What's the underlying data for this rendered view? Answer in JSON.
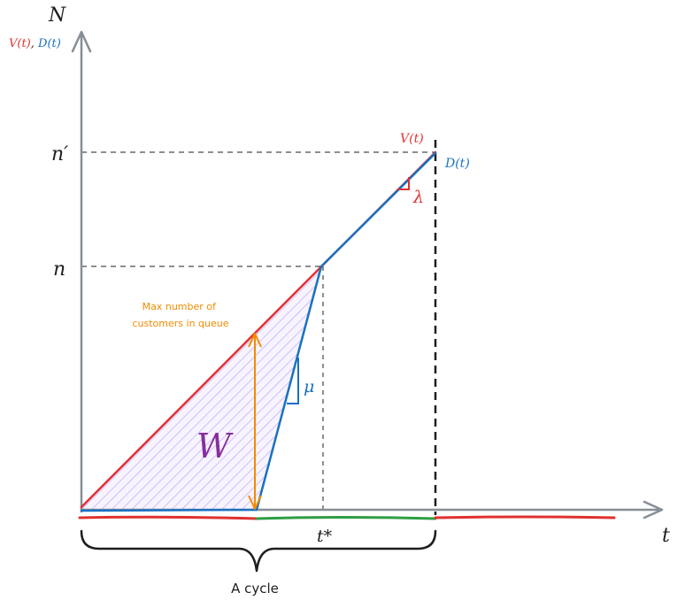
{
  "axes": {
    "y_axis_symbol": "N",
    "y_axis_subtitle_v": "V(t)",
    "y_axis_subtitle_sep": ", ",
    "y_axis_subtitle_d": "D(t)",
    "x_axis_symbol": "t",
    "tick_n_prime": "n′",
    "tick_n": "n",
    "tick_t_star": "t*"
  },
  "curves": {
    "arrivals_label": "V(t)",
    "departures_label": "D(t)",
    "arrival_slope": "λ",
    "service_slope": "μ"
  },
  "annotations": {
    "max_queue": [
      "Max number of",
      "customers in queue"
    ],
    "waiting_area": "W",
    "cycle": "A cycle"
  },
  "colors": {
    "axis": "#868e96",
    "arrival": "#e03131",
    "departure": "#1971c2",
    "hatch": "#b197fc",
    "max_queue": "#f08c00",
    "waiting": "#862e9c",
    "busy_period": "#2f9e44",
    "brace": "#1e1e1e",
    "guide": "#1e1e1e"
  }
}
